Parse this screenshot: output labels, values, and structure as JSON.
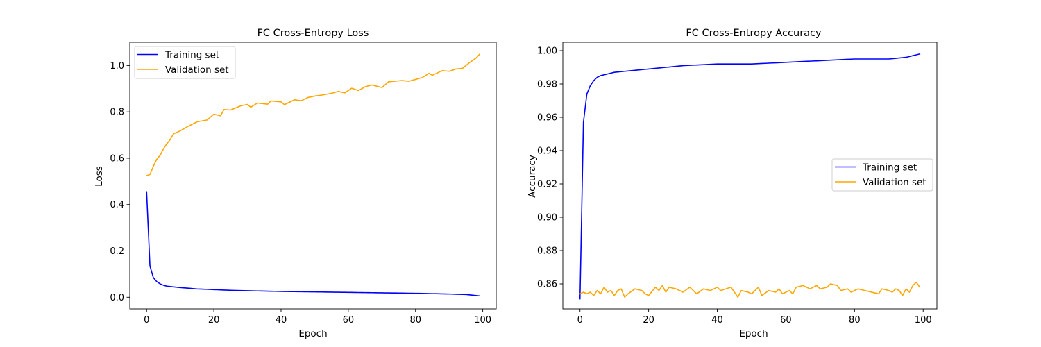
{
  "chart_data": [
    {
      "type": "line",
      "title": "FC Cross-Entropy Loss",
      "xlabel": "Epoch",
      "ylabel": "Loss",
      "xlim": [
        -5,
        104
      ],
      "ylim": [
        -0.05,
        1.1
      ],
      "xticks": [
        0,
        20,
        40,
        60,
        80,
        100
      ],
      "yticks": [
        0.0,
        0.2,
        0.4,
        0.6,
        0.8,
        1.0
      ],
      "ytick_labels": [
        "0.0",
        "0.2",
        "0.4",
        "0.6",
        "0.8",
        "1.0"
      ],
      "grid": false,
      "legend": "upper-left",
      "series": [
        {
          "name": "Training set",
          "color": "#0000ff",
          "keyframes": [
            [
              0,
              0.455
            ],
            [
              1,
              0.135
            ],
            [
              2,
              0.085
            ],
            [
              3,
              0.068
            ],
            [
              4,
              0.058
            ],
            [
              5,
              0.052
            ],
            [
              6,
              0.048
            ],
            [
              8,
              0.045
            ],
            [
              10,
              0.042
            ],
            [
              15,
              0.036
            ],
            [
              20,
              0.033
            ],
            [
              25,
              0.03
            ],
            [
              30,
              0.028
            ],
            [
              40,
              0.025
            ],
            [
              50,
              0.023
            ],
            [
              60,
              0.021
            ],
            [
              70,
              0.019
            ],
            [
              80,
              0.017
            ],
            [
              90,
              0.014
            ],
            [
              95,
              0.012
            ],
            [
              99,
              0.006
            ]
          ]
        },
        {
          "name": "Validation set",
          "color": "#ffa500",
          "keyframes": [
            [
              0,
              0.525
            ],
            [
              1,
              0.53
            ],
            [
              2,
              0.565
            ],
            [
              3,
              0.595
            ],
            [
              4,
              0.612
            ],
            [
              5,
              0.64
            ],
            [
              6,
              0.662
            ],
            [
              7,
              0.68
            ],
            [
              8,
              0.705
            ],
            [
              10,
              0.718
            ],
            [
              12,
              0.735
            ],
            [
              15,
              0.757
            ],
            [
              18,
              0.765
            ],
            [
              20,
              0.79
            ],
            [
              22,
              0.783
            ],
            [
              23,
              0.81
            ],
            [
              25,
              0.808
            ],
            [
              28,
              0.826
            ],
            [
              30,
              0.832
            ],
            [
              31,
              0.82
            ],
            [
              33,
              0.838
            ],
            [
              36,
              0.833
            ],
            [
              37,
              0.847
            ],
            [
              40,
              0.843
            ],
            [
              41,
              0.831
            ],
            [
              44,
              0.852
            ],
            [
              46,
              0.848
            ],
            [
              48,
              0.862
            ],
            [
              50,
              0.868
            ],
            [
              52,
              0.872
            ],
            [
              55,
              0.88
            ],
            [
              57,
              0.888
            ],
            [
              59,
              0.882
            ],
            [
              61,
              0.902
            ],
            [
              63,
              0.892
            ],
            [
              65,
              0.908
            ],
            [
              67,
              0.916
            ],
            [
              70,
              0.905
            ],
            [
              72,
              0.93
            ],
            [
              76,
              0.935
            ],
            [
              78,
              0.932
            ],
            [
              82,
              0.948
            ],
            [
              84,
              0.966
            ],
            [
              85,
              0.958
            ],
            [
              88,
              0.978
            ],
            [
              90,
              0.975
            ],
            [
              92,
              0.985
            ],
            [
              94,
              0.988
            ],
            [
              96,
              1.012
            ],
            [
              98,
              1.032
            ],
            [
              99,
              1.048
            ]
          ]
        }
      ]
    },
    {
      "type": "line",
      "title": "FC Cross-Entropy Accuracy",
      "xlabel": "Epoch",
      "ylabel": "Accuracy",
      "xlim": [
        -5,
        104
      ],
      "ylim": [
        0.845,
        1.005
      ],
      "xticks": [
        0,
        20,
        40,
        60,
        80,
        100
      ],
      "yticks": [
        0.86,
        0.88,
        0.9,
        0.92,
        0.94,
        0.96,
        0.98,
        1.0
      ],
      "ytick_labels": [
        "0.86",
        "0.88",
        "0.90",
        "0.92",
        "0.94",
        "0.96",
        "0.98",
        "1.00"
      ],
      "grid": false,
      "legend": "center-right",
      "series": [
        {
          "name": "Training set",
          "color": "#0000ff",
          "keyframes": [
            [
              0,
              0.851
            ],
            [
              1,
              0.957
            ],
            [
              2,
              0.974
            ],
            [
              3,
              0.979
            ],
            [
              4,
              0.982
            ],
            [
              5,
              0.984
            ],
            [
              6,
              0.985
            ],
            [
              8,
              0.986
            ],
            [
              10,
              0.987
            ],
            [
              15,
              0.988
            ],
            [
              20,
              0.989
            ],
            [
              25,
              0.99
            ],
            [
              30,
              0.991
            ],
            [
              40,
              0.992
            ],
            [
              50,
              0.992
            ],
            [
              60,
              0.993
            ],
            [
              70,
              0.994
            ],
            [
              80,
              0.995
            ],
            [
              90,
              0.995
            ],
            [
              95,
              0.996
            ],
            [
              99,
              0.998
            ]
          ]
        },
        {
          "name": "Validation set",
          "color": "#ffa500",
          "keyframes": [
            [
              0,
              0.854
            ],
            [
              1,
              0.855
            ],
            [
              2,
              0.854
            ],
            [
              3,
              0.855
            ],
            [
              4,
              0.853
            ],
            [
              5,
              0.856
            ],
            [
              6,
              0.854
            ],
            [
              7,
              0.858
            ],
            [
              8,
              0.855
            ],
            [
              9,
              0.856
            ],
            [
              10,
              0.853
            ],
            [
              11,
              0.856
            ],
            [
              12,
              0.857
            ],
            [
              13,
              0.852
            ],
            [
              14,
              0.854
            ],
            [
              16,
              0.857
            ],
            [
              18,
              0.856
            ],
            [
              19,
              0.854
            ],
            [
              20,
              0.853
            ],
            [
              22,
              0.858
            ],
            [
              23,
              0.856
            ],
            [
              24,
              0.859
            ],
            [
              25,
              0.855
            ],
            [
              26,
              0.858
            ],
            [
              28,
              0.857
            ],
            [
              30,
              0.855
            ],
            [
              32,
              0.858
            ],
            [
              33,
              0.856
            ],
            [
              34,
              0.854
            ],
            [
              36,
              0.857
            ],
            [
              38,
              0.856
            ],
            [
              40,
              0.858
            ],
            [
              41,
              0.856
            ],
            [
              44,
              0.858
            ],
            [
              46,
              0.852
            ],
            [
              47,
              0.856
            ],
            [
              49,
              0.855
            ],
            [
              50,
              0.854
            ],
            [
              52,
              0.858
            ],
            [
              53,
              0.853
            ],
            [
              55,
              0.856
            ],
            [
              57,
              0.855
            ],
            [
              58,
              0.857
            ],
            [
              59,
              0.854
            ],
            [
              61,
              0.856
            ],
            [
              62,
              0.854
            ],
            [
              63,
              0.858
            ],
            [
              65,
              0.859
            ],
            [
              67,
              0.857
            ],
            [
              69,
              0.859
            ],
            [
              70,
              0.857
            ],
            [
              72,
              0.858
            ],
            [
              73,
              0.86
            ],
            [
              75,
              0.859
            ],
            [
              76,
              0.856
            ],
            [
              78,
              0.857
            ],
            [
              79,
              0.855
            ],
            [
              81,
              0.857
            ],
            [
              83,
              0.856
            ],
            [
              85,
              0.855
            ],
            [
              87,
              0.854
            ],
            [
              88,
              0.857
            ],
            [
              90,
              0.856
            ],
            [
              91,
              0.855
            ],
            [
              92,
              0.857
            ],
            [
              93,
              0.856
            ],
            [
              94,
              0.853
            ],
            [
              95,
              0.857
            ],
            [
              96,
              0.855
            ],
            [
              97,
              0.859
            ],
            [
              98,
              0.861
            ],
            [
              99,
              0.858
            ]
          ]
        }
      ]
    }
  ]
}
